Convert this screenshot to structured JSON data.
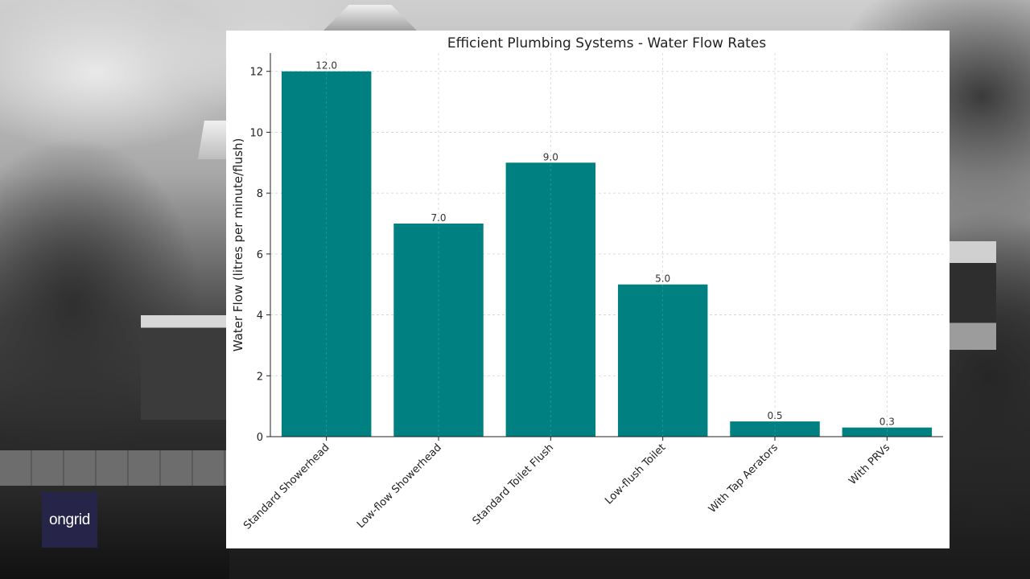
{
  "logo": {
    "text": "ongrid"
  },
  "colors": {
    "bar": "#008080",
    "grid": "#d0d0d0",
    "axis": "#222222"
  },
  "chart_data": {
    "type": "bar",
    "title": "Efficient Plumbing Systems - Water Flow Rates",
    "xlabel": "",
    "ylabel": "Water Flow (litres per minute/flush)",
    "categories": [
      "Standard Showerhead",
      "Low-flow Showerhead",
      "Standard Toilet Flush",
      "Low-flush Toilet",
      "With Tap Aerators",
      "With PRVs"
    ],
    "values": [
      12.0,
      7.0,
      9.0,
      5.0,
      0.5,
      0.3
    ],
    "data_labels": [
      "12.0",
      "7.0",
      "9.0",
      "5.0",
      "0.5",
      "0.3"
    ],
    "yticks": [
      0,
      2,
      4,
      6,
      8,
      10,
      12
    ],
    "ylim": [
      0,
      12.6
    ],
    "grid": true,
    "legend": "none"
  }
}
